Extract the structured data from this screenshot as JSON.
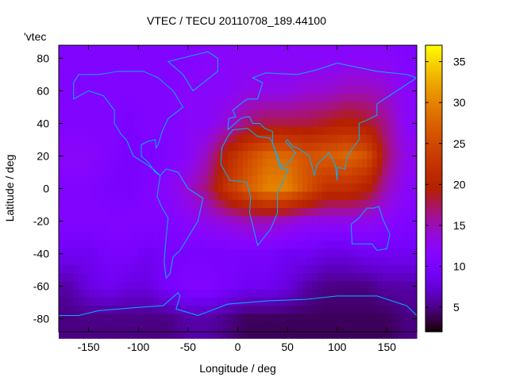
{
  "chart_data": {
    "type": "heatmap",
    "title": "VTEC / TECU 20110708_189.44100",
    "xlabel": "Longitude / deg",
    "ylabel": "Latitude / deg",
    "legend": "'vtec",
    "legend_placement": "top-left",
    "xlim": [
      -180,
      180
    ],
    "ylim": [
      -88,
      88
    ],
    "xticks": [
      -150,
      -100,
      -50,
      0,
      50,
      100,
      150
    ],
    "yticks": [
      80,
      60,
      40,
      20,
      0,
      -20,
      -40,
      -60,
      -80
    ],
    "colorbar": {
      "range": [
        2,
        37
      ],
      "ticks": [
        5,
        10,
        15,
        20,
        25,
        30,
        35
      ],
      "palette": "black-blue-purple-red-orange-yellow"
    },
    "grid": false,
    "lon": [
      -170,
      -150,
      -130,
      -110,
      -90,
      -70,
      -50,
      -30,
      -10,
      10,
      30,
      50,
      70,
      90,
      110,
      130,
      150,
      170
    ],
    "lat": [
      80,
      60,
      40,
      20,
      0,
      -20,
      -40,
      -60,
      -80
    ],
    "values": [
      [
        11,
        11,
        11,
        11,
        11,
        11,
        11,
        12,
        12,
        12,
        12,
        12,
        12,
        12,
        12,
        12,
        12,
        11
      ],
      [
        11,
        11,
        11,
        11,
        11,
        11,
        12,
        12,
        12,
        13,
        13,
        13,
        14,
        14,
        15,
        15,
        14,
        12
      ],
      [
        11,
        11,
        11,
        10,
        11,
        11,
        12,
        12,
        14,
        17,
        18,
        18,
        18,
        19,
        20,
        19,
        16,
        12
      ],
      [
        12,
        12,
        11,
        10,
        10,
        11,
        12,
        15,
        21,
        25,
        28,
        28,
        26,
        27,
        28,
        26,
        17,
        13
      ],
      [
        11,
        11,
        10,
        10,
        11,
        12,
        14,
        17,
        23,
        27,
        30,
        30,
        26,
        22,
        22,
        20,
        15,
        12
      ],
      [
        11,
        11,
        11,
        11,
        11,
        11,
        12,
        13,
        14,
        15,
        15,
        14,
        13,
        13,
        13,
        13,
        12,
        11
      ],
      [
        9,
        9,
        10,
        10,
        9,
        10,
        10,
        10,
        10,
        10,
        10,
        9,
        9,
        8,
        8,
        9,
        9,
        9
      ],
      [
        6,
        8,
        9,
        8,
        8,
        10,
        11,
        11,
        10,
        9,
        9,
        8,
        6,
        5,
        5,
        5,
        6,
        6
      ],
      [
        5,
        5,
        5,
        5,
        5,
        5,
        6,
        6,
        5,
        4,
        4,
        4,
        4,
        4,
        4,
        4,
        4,
        5
      ]
    ]
  }
}
